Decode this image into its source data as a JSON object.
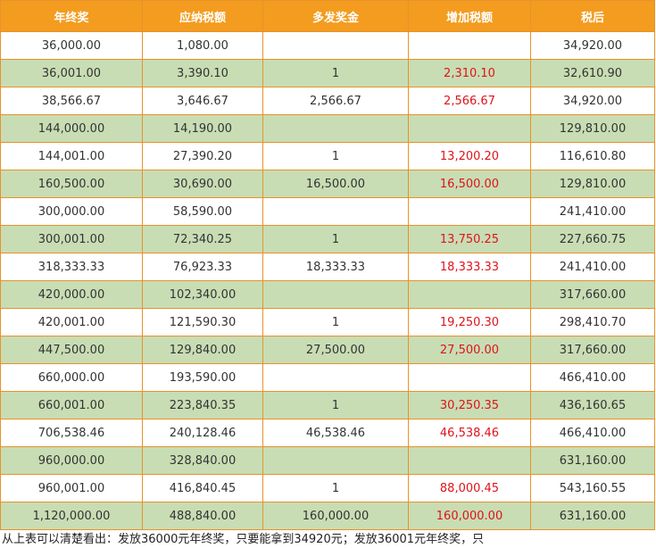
{
  "table": {
    "headers": [
      "年终奖",
      "应纳税额",
      "多发奖金",
      "增加税额",
      "税后"
    ],
    "rows": [
      [
        "36,000.00",
        "1,080.00",
        "",
        "",
        "34,920.00"
      ],
      [
        "36,001.00",
        "3,390.10",
        "1",
        "2,310.10",
        "32,610.90"
      ],
      [
        "38,566.67",
        "3,646.67",
        "2,566.67",
        "2,566.67",
        "34,920.00"
      ],
      [
        "144,000.00",
        "14,190.00",
        "",
        "",
        "129,810.00"
      ],
      [
        "144,001.00",
        "27,390.20",
        "1",
        "13,200.20",
        "116,610.80"
      ],
      [
        "160,500.00",
        "30,690.00",
        "16,500.00",
        "16,500.00",
        "129,810.00"
      ],
      [
        "300,000.00",
        "58,590.00",
        "",
        "",
        "241,410.00"
      ],
      [
        "300,001.00",
        "72,340.25",
        "1",
        "13,750.25",
        "227,660.75"
      ],
      [
        "318,333.33",
        "76,923.33",
        "18,333.33",
        "18,333.33",
        "241,410.00"
      ],
      [
        "420,000.00",
        "102,340.00",
        "",
        "",
        "317,660.00"
      ],
      [
        "420,001.00",
        "121,590.30",
        "1",
        "19,250.30",
        "298,410.70"
      ],
      [
        "447,500.00",
        "129,840.00",
        "27,500.00",
        "27,500.00",
        "317,660.00"
      ],
      [
        "660,000.00",
        "193,590.00",
        "",
        "",
        "466,410.00"
      ],
      [
        "660,001.00",
        "223,840.35",
        "1",
        "30,250.35",
        "436,160.65"
      ],
      [
        "706,538.46",
        "240,128.46",
        "46,538.46",
        "46,538.46",
        "466,410.00"
      ],
      [
        "960,000.00",
        "328,840.00",
        "",
        "",
        "631,160.00"
      ],
      [
        "960,001.00",
        "416,840.45",
        "1",
        "88,000.45",
        "543,160.55"
      ],
      [
        "1,120,000.00",
        "488,840.00",
        "160,000.00",
        "160,000.00",
        "631,160.00"
      ]
    ]
  },
  "caption": "从上表可以清楚看出：发放36000元年终奖，只要能拿到34920元；发放36001元年终奖，只",
  "colors": {
    "header_bg": "#f39c1f",
    "header_text": "#ffffff",
    "border": "#e8922a",
    "stripe_bg": "#c8ddb4",
    "increase_text": "#e0121a"
  }
}
